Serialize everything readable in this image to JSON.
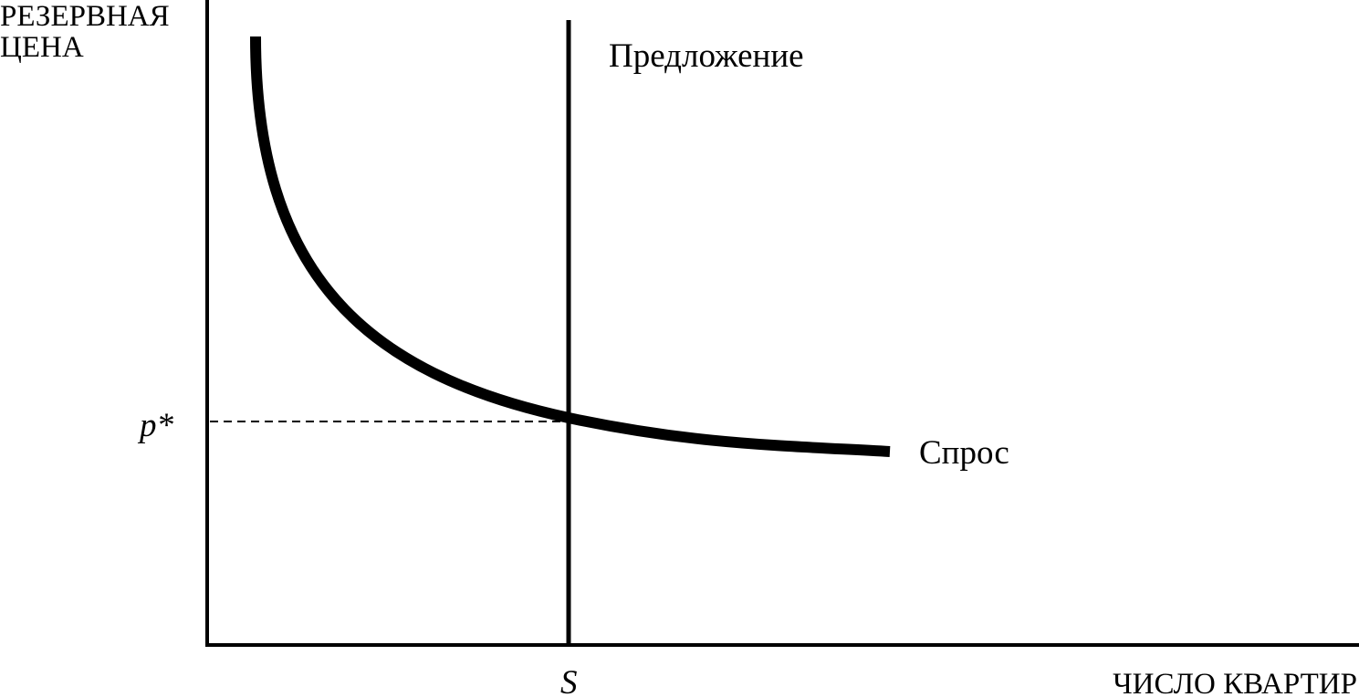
{
  "axes": {
    "y_label": [
      "РЕЗЕРВНАЯ",
      "ЦЕНА"
    ],
    "x_label": "ЧИСЛО КВАРТИР"
  },
  "curves": {
    "supply": "Предложение",
    "demand": "Спрос"
  },
  "points": {
    "price": "p*",
    "quantity": "S"
  }
}
